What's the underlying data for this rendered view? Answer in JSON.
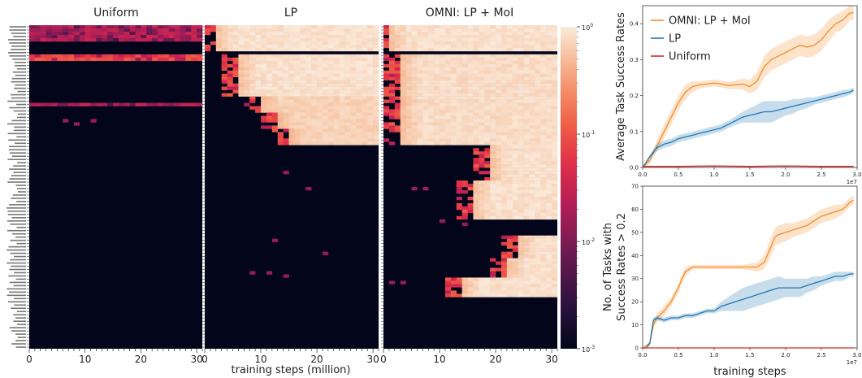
{
  "chart_data": [
    {
      "type": "heatmap",
      "title": "Uniform",
      "xlabel": "",
      "xlim": [
        0,
        31
      ],
      "xticks": [
        0,
        10,
        20,
        30
      ],
      "rows": 100,
      "cols": 31,
      "color_scale": "log",
      "bands": [
        {
          "row_start": 0,
          "row_end": 5,
          "col_start": 0,
          "col_end": 31,
          "level": 0.02,
          "noise": true
        },
        {
          "row_start": 9,
          "row_end": 11,
          "col_start": 0,
          "col_end": 31,
          "level": 0.07,
          "noise": true
        },
        {
          "row_start": 24,
          "row_end": 25,
          "col_start": 0,
          "col_end": 31,
          "level": 0.02,
          "noise": true
        }
      ],
      "specks": [
        [
          29,
          6
        ],
        [
          29,
          11
        ],
        [
          30,
          8
        ]
      ]
    },
    {
      "type": "heatmap",
      "title": "LP",
      "xlabel": "",
      "xlim": [
        0,
        31
      ],
      "xticks": [
        0,
        10,
        20,
        30
      ],
      "rows": 100,
      "cols": 31,
      "color_scale": "log",
      "bands": [
        {
          "row_start": 0,
          "row_end": 8,
          "col_start": 2,
          "col_end": 31,
          "level": 0.85,
          "noise": false
        },
        {
          "row_start": 9,
          "row_end": 22,
          "col_start": 6,
          "col_end": 31,
          "level": 0.85,
          "noise": false
        },
        {
          "row_start": 22,
          "row_end": 27,
          "col_start": 10,
          "col_end": 31,
          "level": 0.7,
          "noise": false
        },
        {
          "row_start": 27,
          "row_end": 32,
          "col_start": 13,
          "col_end": 31,
          "level": 0.7,
          "noise": false
        },
        {
          "row_start": 32,
          "row_end": 37,
          "col_start": 15,
          "col_end": 31,
          "level": 0.7,
          "noise": false
        }
      ],
      "specks": [
        [
          45,
          14
        ],
        [
          50,
          18
        ],
        [
          66,
          12
        ],
        [
          70,
          21
        ],
        [
          76,
          8
        ],
        [
          76,
          11
        ],
        [
          77,
          14
        ]
      ]
    },
    {
      "type": "heatmap",
      "title": "OMNI: LP + MoI",
      "xlabel": "",
      "xlim": [
        0,
        31
      ],
      "xticks": [
        0,
        10,
        20,
        30
      ],
      "rows": 100,
      "cols": 31,
      "color_scale": "log",
      "bands": [
        {
          "row_start": 0,
          "row_end": 8,
          "col_start": 1,
          "col_end": 31,
          "level": 0.85,
          "noise": false
        },
        {
          "row_start": 9,
          "row_end": 37,
          "col_start": 3,
          "col_end": 31,
          "level": 0.8,
          "noise": false
        },
        {
          "row_start": 37,
          "row_end": 48,
          "col_start": 19,
          "col_end": 31,
          "level": 0.85,
          "noise": false
        },
        {
          "row_start": 48,
          "row_end": 60,
          "col_start": 16,
          "col_end": 31,
          "level": 0.85,
          "noise": false
        },
        {
          "row_start": 65,
          "row_end": 72,
          "col_start": 24,
          "col_end": 31,
          "level": 0.85,
          "noise": false
        },
        {
          "row_start": 72,
          "row_end": 78,
          "col_start": 22,
          "col_end": 31,
          "level": 0.85,
          "noise": false
        },
        {
          "row_start": 78,
          "row_end": 84,
          "col_start": 14,
          "col_end": 31,
          "level": 0.85,
          "noise": false
        }
      ],
      "specks": [
        [
          50,
          5
        ],
        [
          50,
          7
        ],
        [
          60,
          10
        ],
        [
          61,
          14
        ],
        [
          79,
          1
        ],
        [
          79,
          3
        ]
      ]
    },
    {
      "type": "line",
      "title": "",
      "xlabel": "",
      "ylabel": "Average Task Success Rates",
      "xlim": [
        0,
        3.0
      ],
      "ylim": [
        0,
        0.45
      ],
      "xticks": [
        0.0,
        0.5,
        1.0,
        1.5,
        2.0,
        2.5,
        3.0
      ],
      "yticks": [
        0.0,
        0.1,
        0.2,
        0.3,
        0.4
      ],
      "x_exponent": "1e7",
      "legend": "top-left",
      "series": [
        {
          "name": "OMNI: LP + MoI",
          "color": "#f28e2b",
          "x": [
            0.0,
            0.1,
            0.2,
            0.3,
            0.4,
            0.5,
            0.6,
            0.7,
            0.8,
            0.9,
            1.0,
            1.1,
            1.2,
            1.3,
            1.4,
            1.5,
            1.6,
            1.7,
            1.8,
            1.9,
            2.0,
            2.1,
            2.2,
            2.3,
            2.4,
            2.5,
            2.6,
            2.7,
            2.8,
            2.9,
            2.95
          ],
          "y": [
            0.0,
            0.02,
            0.06,
            0.1,
            0.14,
            0.18,
            0.21,
            0.225,
            0.23,
            0.232,
            0.235,
            0.232,
            0.228,
            0.23,
            0.232,
            0.225,
            0.24,
            0.28,
            0.3,
            0.31,
            0.32,
            0.33,
            0.34,
            0.335,
            0.34,
            0.355,
            0.38,
            0.4,
            0.41,
            0.43,
            0.43
          ],
          "band": [
            0.0,
            0.01,
            0.015,
            0.02,
            0.02,
            0.02,
            0.02,
            0.015,
            0.01,
            0.01,
            0.01,
            0.01,
            0.01,
            0.012,
            0.015,
            0.02,
            0.025,
            0.03,
            0.03,
            0.03,
            0.03,
            0.03,
            0.03,
            0.03,
            0.03,
            0.03,
            0.03,
            0.025,
            0.025,
            0.02,
            0.02
          ]
        },
        {
          "name": "LP",
          "color": "#1f77b4",
          "x": [
            0.0,
            0.1,
            0.2,
            0.3,
            0.4,
            0.5,
            0.6,
            0.7,
            0.8,
            0.9,
            1.0,
            1.1,
            1.2,
            1.3,
            1.4,
            1.5,
            1.6,
            1.7,
            1.8,
            1.9,
            2.0,
            2.1,
            2.2,
            2.3,
            2.4,
            2.5,
            2.6,
            2.7,
            2.8,
            2.9,
            2.95
          ],
          "y": [
            0.0,
            0.03,
            0.055,
            0.065,
            0.07,
            0.08,
            0.085,
            0.09,
            0.095,
            0.1,
            0.105,
            0.11,
            0.12,
            0.13,
            0.14,
            0.145,
            0.15,
            0.155,
            0.155,
            0.16,
            0.165,
            0.17,
            0.175,
            0.18,
            0.185,
            0.19,
            0.195,
            0.2,
            0.205,
            0.21,
            0.215
          ],
          "band": [
            0.0,
            0.005,
            0.01,
            0.01,
            0.01,
            0.01,
            0.01,
            0.01,
            0.01,
            0.01,
            0.01,
            0.01,
            0.01,
            0.012,
            0.015,
            0.02,
            0.025,
            0.03,
            0.03,
            0.025,
            0.02,
            0.02,
            0.015,
            0.015,
            0.01,
            0.01,
            0.01,
            0.01,
            0.01,
            0.008,
            0.008
          ]
        },
        {
          "name": "Uniform",
          "color": "#d62728",
          "x": [
            0.0,
            0.5,
            1.0,
            1.5,
            2.0,
            2.5,
            2.95
          ],
          "y": [
            0.003,
            0.003,
            0.004,
            0.003,
            0.004,
            0.003,
            0.003
          ],
          "band": [
            0.0,
            0.0,
            0.0,
            0.0,
            0.0,
            0.0,
            0.0
          ]
        }
      ]
    },
    {
      "type": "line",
      "title": "",
      "xlabel": "training steps",
      "ylabel": "No. of Tasks with Success Rates > 0.2",
      "xlim": [
        0,
        3.0
      ],
      "ylim": [
        0,
        70
      ],
      "xticks": [
        0.0,
        0.5,
        1.0,
        1.5,
        2.0,
        2.5,
        3.0
      ],
      "yticks": [
        0,
        10,
        20,
        30,
        40,
        50,
        60,
        70
      ],
      "x_exponent": "1e7",
      "series": [
        {
          "name": "",
          "color": "#f28e2b",
          "x": [
            0.0,
            0.1,
            0.15,
            0.2,
            0.3,
            0.4,
            0.5,
            0.55,
            0.6,
            0.7,
            0.8,
            0.9,
            1.0,
            1.2,
            1.4,
            1.6,
            1.7,
            1.8,
            1.85,
            1.9,
            2.0,
            2.1,
            2.2,
            2.3,
            2.4,
            2.5,
            2.6,
            2.7,
            2.8,
            2.9,
            2.95
          ],
          "y": [
            0,
            2,
            10,
            13,
            16,
            20,
            26,
            30,
            33,
            35,
            35,
            35,
            35,
            35,
            35,
            35,
            37,
            44,
            48,
            49,
            50,
            51,
            52,
            53,
            55,
            57,
            58,
            59,
            60,
            63,
            64
          ],
          "band": [
            0,
            1,
            2,
            2,
            2,
            2,
            2,
            2,
            2,
            1,
            1,
            1,
            1,
            1,
            1,
            2,
            3,
            4,
            4,
            4,
            4,
            3,
            3,
            3,
            3,
            3,
            3,
            3,
            2,
            2,
            2
          ]
        },
        {
          "name": "",
          "color": "#1f77b4",
          "x": [
            0.0,
            0.05,
            0.1,
            0.15,
            0.2,
            0.3,
            0.4,
            0.5,
            0.6,
            0.7,
            0.8,
            0.9,
            1.0,
            1.1,
            1.2,
            1.3,
            1.4,
            1.5,
            1.6,
            1.7,
            1.8,
            1.9,
            2.0,
            2.1,
            2.2,
            2.3,
            2.4,
            2.5,
            2.6,
            2.7,
            2.8,
            2.9,
            2.95
          ],
          "y": [
            0,
            0,
            2,
            12,
            13,
            12,
            13,
            13,
            14,
            14,
            15,
            16,
            16,
            18,
            19,
            20,
            21,
            22,
            23,
            24,
            25,
            26,
            26,
            26,
            26,
            27,
            28,
            29,
            30,
            31,
            31,
            32,
            32
          ],
          "band": [
            0,
            0,
            1,
            1,
            1,
            1,
            1,
            1,
            1,
            1,
            1,
            1,
            1,
            2,
            3,
            4,
            5,
            5,
            5,
            5,
            5,
            5,
            4,
            4,
            4,
            3,
            3,
            2,
            2,
            2,
            2,
            1,
            1
          ]
        },
        {
          "name": "",
          "color": "#d62728",
          "x": [
            0.0,
            0.5,
            1.0,
            1.5,
            2.0,
            2.5,
            2.95
          ],
          "y": [
            0,
            0,
            0,
            0,
            0,
            0,
            0
          ],
          "band": [
            0,
            0,
            0,
            0,
            0,
            0,
            0
          ]
        }
      ]
    }
  ],
  "shared_xlabel": "training steps (million)",
  "colorbar": {
    "ticks": [
      "10",
      "10",
      "10",
      "10"
    ],
    "exponents": [
      "0",
      "-1",
      "-2",
      "-3"
    ],
    "min": 0.001,
    "max": 1
  },
  "row_label_count": 100
}
